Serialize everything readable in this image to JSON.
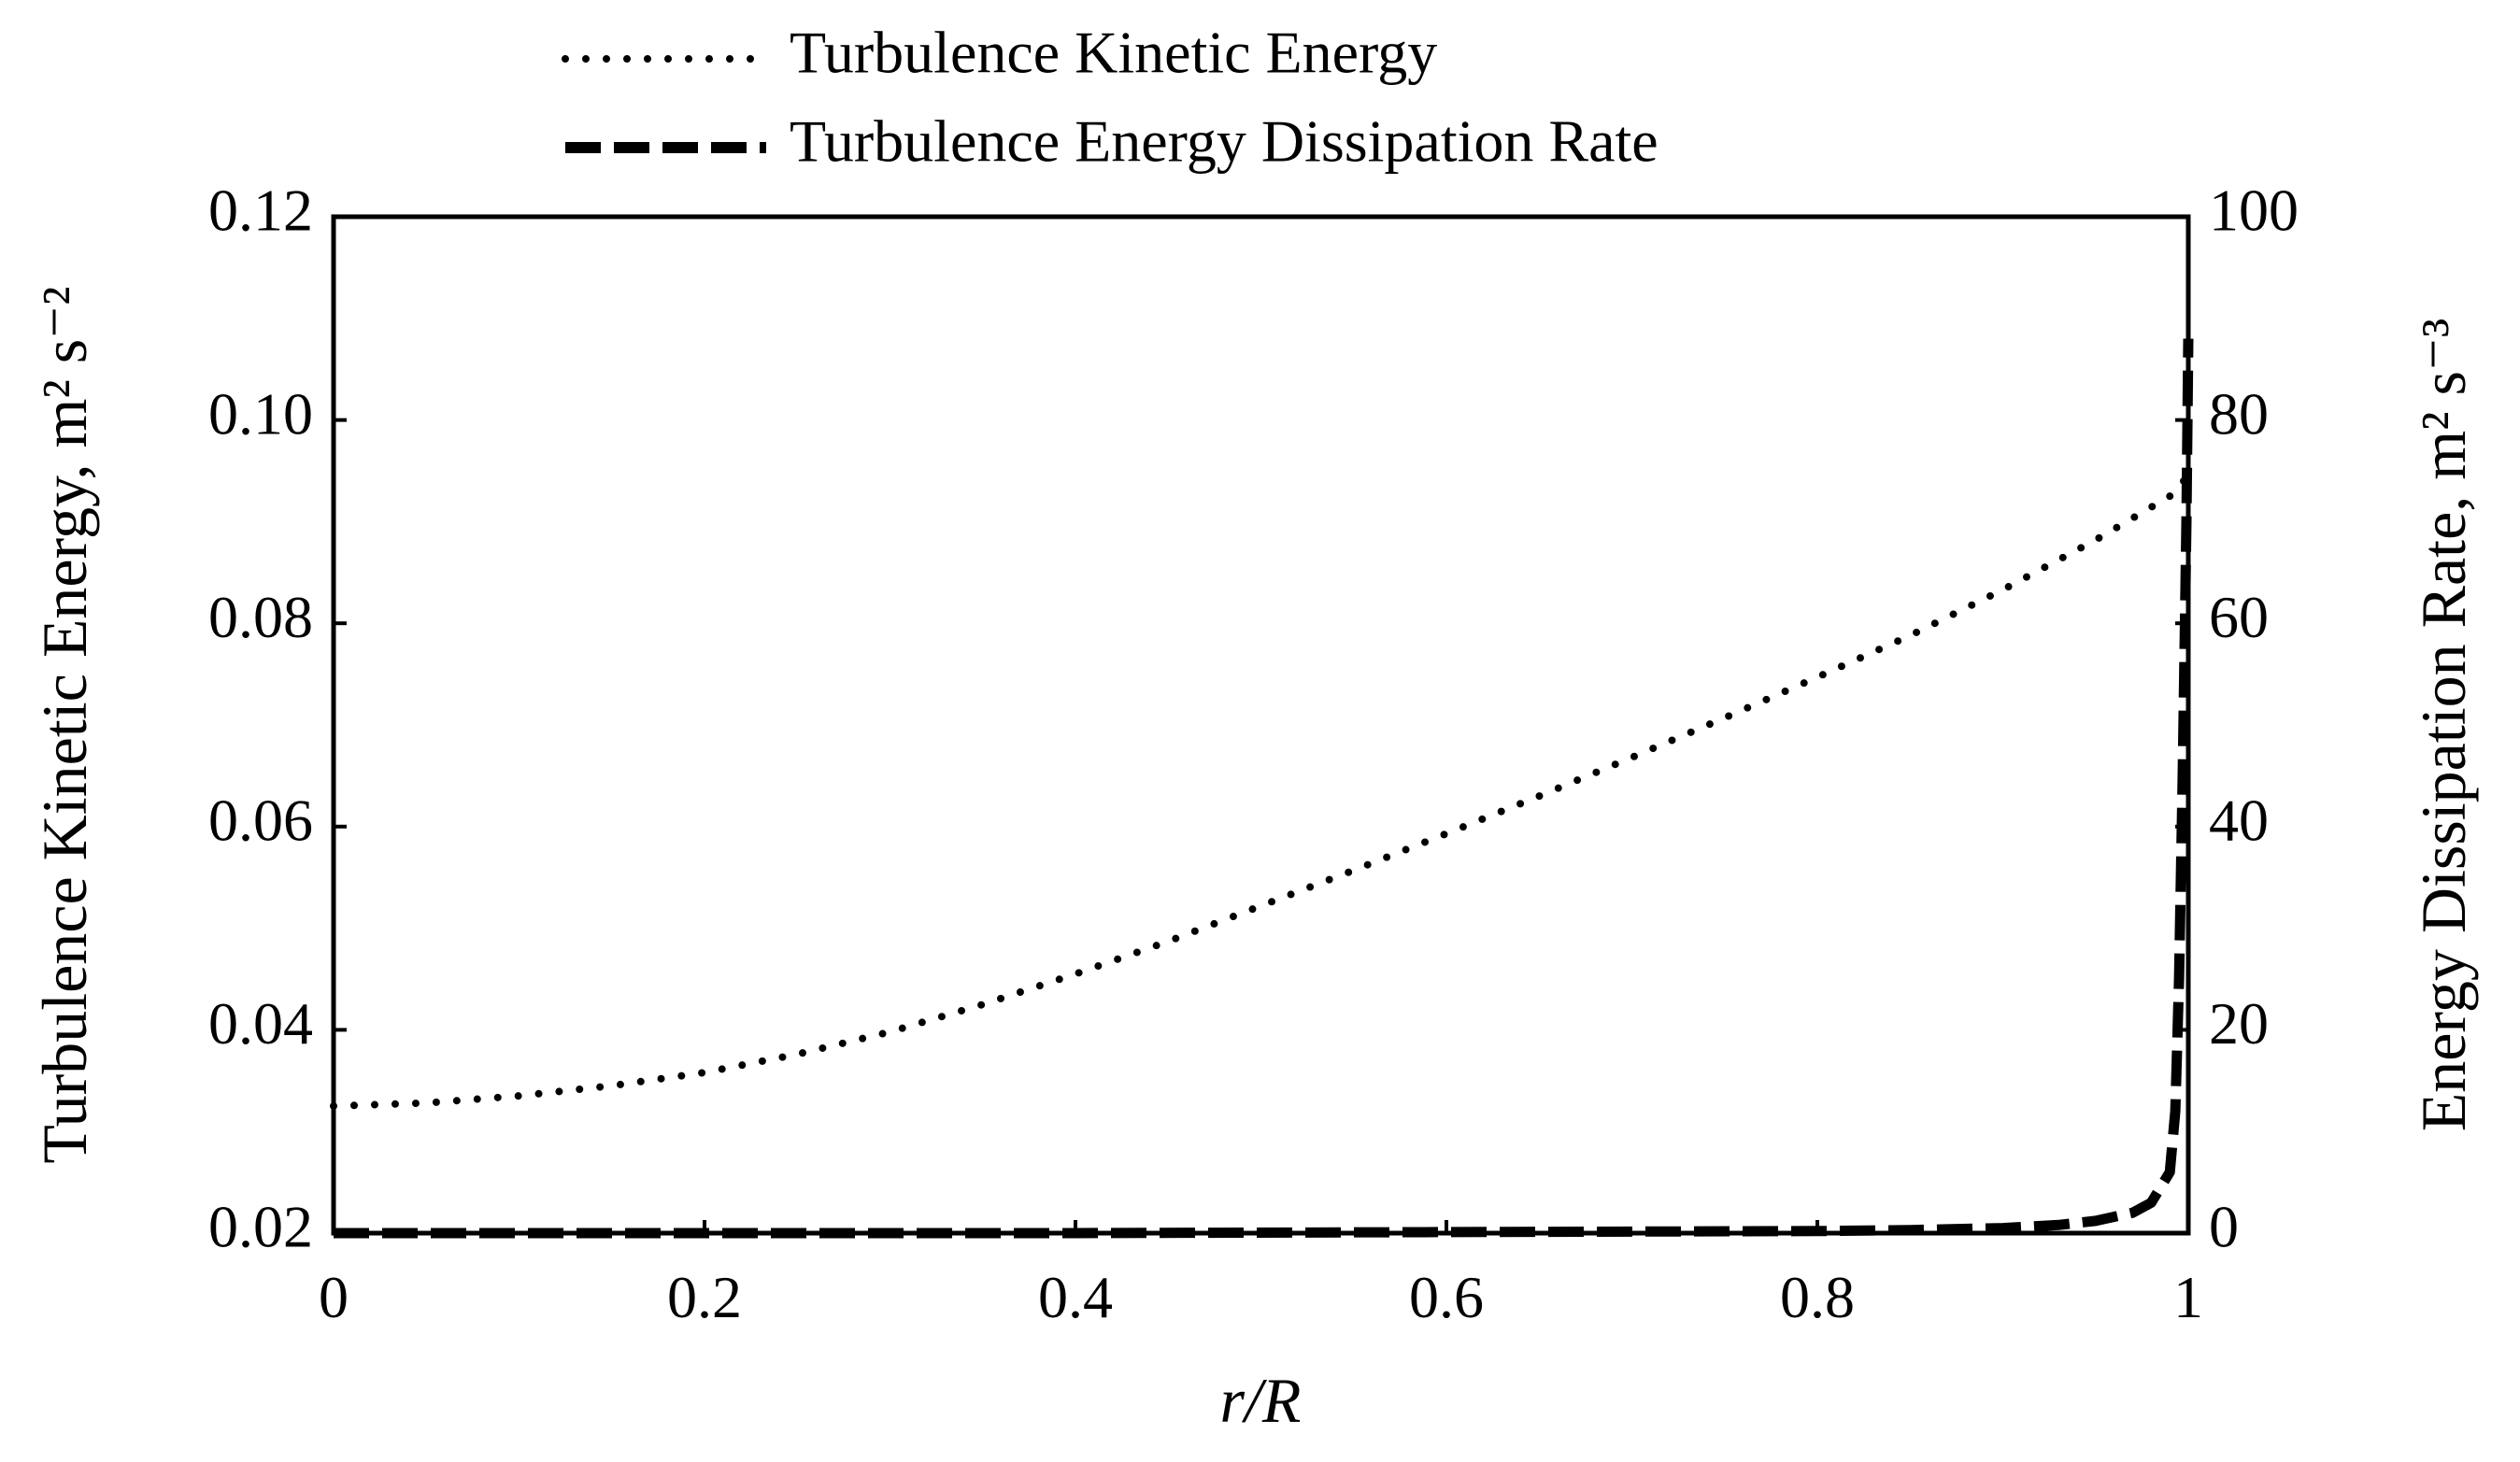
{
  "chart_data": {
    "type": "line",
    "title": "",
    "xlabel": "r/R",
    "ylabel_left": "Turbulence Kinetic Energy, m² s⁻²",
    "ylabel_right": "Energy Dissipation Rate, m² s⁻³",
    "xlim": [
      0,
      1
    ],
    "ylim_left": [
      0.02,
      0.12
    ],
    "ylim_right": [
      0,
      100
    ],
    "grid": false,
    "legend_position": "top",
    "x_ticks": [
      "0",
      "0.2",
      "0.4",
      "0.6",
      "0.8",
      "1"
    ],
    "y_left_ticks": [
      "0.02",
      "0.04",
      "0.06",
      "0.08",
      "0.10",
      "0.12"
    ],
    "y_right_ticks": [
      "0",
      "20",
      "40",
      "60",
      "80",
      "100"
    ],
    "series": [
      {
        "name": "Turbulence Kinetic Energy",
        "axis": "left",
        "style": "dotted",
        "color": "#000000",
        "x": [
          0,
          0.05,
          0.1,
          0.15,
          0.2,
          0.25,
          0.3,
          0.35,
          0.4,
          0.45,
          0.5,
          0.55,
          0.6,
          0.65,
          0.7,
          0.75,
          0.8,
          0.85,
          0.9,
          0.95,
          0.99,
          1.0
        ],
        "y": [
          0.0325,
          0.0328,
          0.0335,
          0.0345,
          0.0358,
          0.0376,
          0.0398,
          0.0425,
          0.0455,
          0.0487,
          0.0522,
          0.0557,
          0.0593,
          0.063,
          0.0668,
          0.0707,
          0.0747,
          0.0788,
          0.0833,
          0.0882,
          0.0925,
          0.0945
        ]
      },
      {
        "name": "Turbulence Energy Dissipation Rate",
        "axis": "right",
        "style": "dashed",
        "color": "#000000",
        "x": [
          0,
          0.2,
          0.4,
          0.6,
          0.8,
          0.85,
          0.9,
          0.93,
          0.95,
          0.97,
          0.98,
          0.99,
          0.993,
          0.995,
          0.997,
          0.999,
          1.0
        ],
        "y": [
          0,
          0,
          0,
          0.1,
          0.2,
          0.3,
          0.5,
          0.8,
          1.2,
          2.0,
          3.0,
          6.0,
          12,
          25,
          45,
          70,
          88
        ]
      }
    ]
  }
}
